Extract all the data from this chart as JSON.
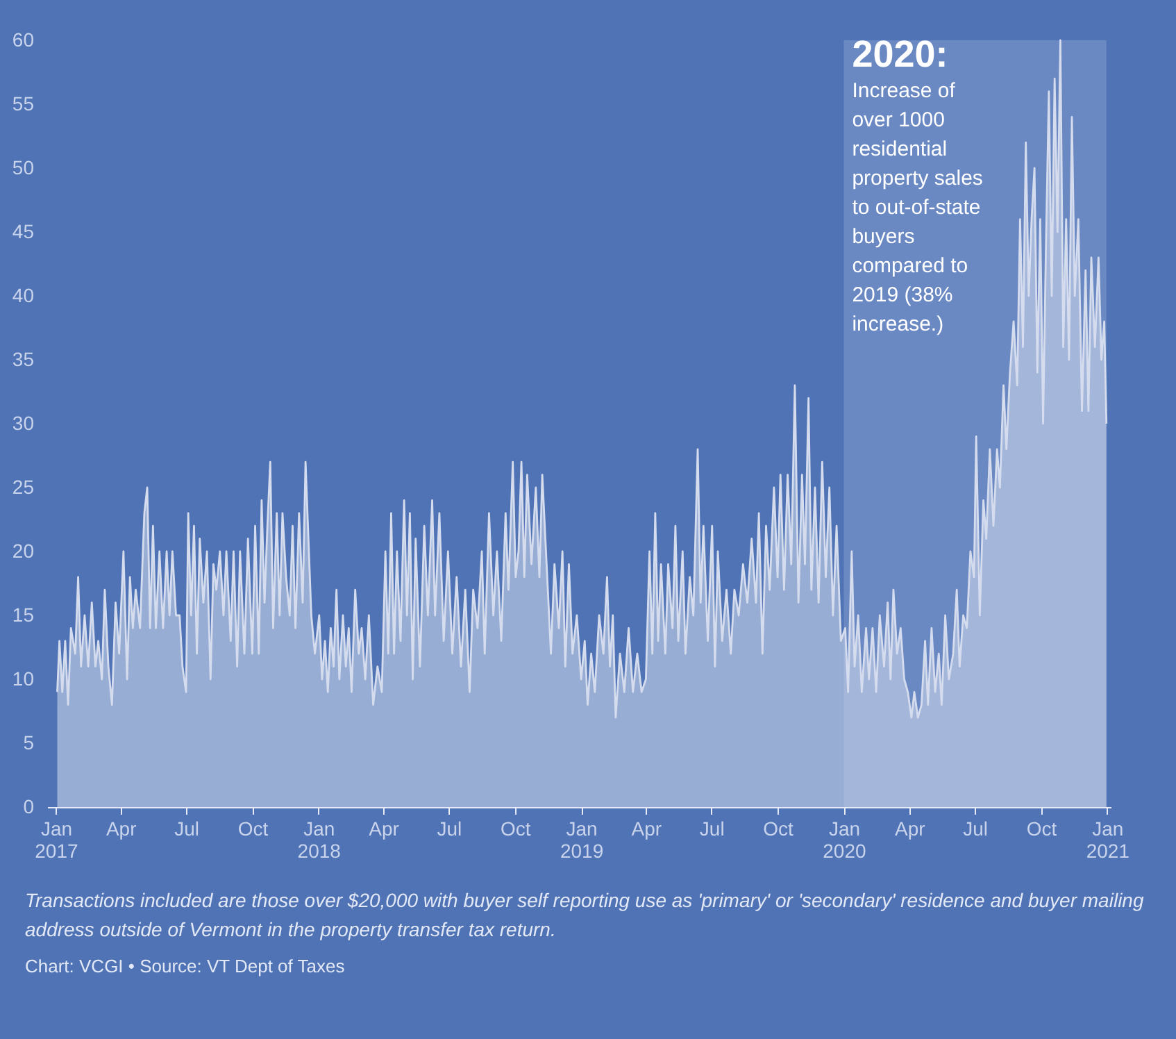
{
  "chart_data": {
    "type": "area",
    "x": [
      "2017-01-03",
      "2017-01-06",
      "2017-01-10",
      "2017-01-14",
      "2017-01-18",
      "2017-01-22",
      "2017-01-28",
      "2017-02-01",
      "2017-02-05",
      "2017-02-10",
      "2017-02-15",
      "2017-02-20",
      "2017-02-25",
      "2017-03-01",
      "2017-03-06",
      "2017-03-10",
      "2017-03-15",
      "2017-03-20",
      "2017-03-25",
      "2017-03-30",
      "2017-04-05",
      "2017-04-10",
      "2017-04-14",
      "2017-04-18",
      "2017-04-22",
      "2017-04-28",
      "2017-05-04",
      "2017-05-08",
      "2017-05-12",
      "2017-05-16",
      "2017-05-20",
      "2017-05-25",
      "2017-05-30",
      "2017-06-04",
      "2017-06-08",
      "2017-06-12",
      "2017-06-17",
      "2017-06-22",
      "2017-06-26",
      "2017-07-01",
      "2017-07-04",
      "2017-07-08",
      "2017-07-12",
      "2017-07-16",
      "2017-07-20",
      "2017-07-25",
      "2017-07-30",
      "2017-08-04",
      "2017-08-08",
      "2017-08-12",
      "2017-08-17",
      "2017-08-22",
      "2017-08-26",
      "2017-09-01",
      "2017-09-05",
      "2017-09-10",
      "2017-09-14",
      "2017-09-20",
      "2017-09-25",
      "2017-10-01",
      "2017-10-05",
      "2017-10-10",
      "2017-10-14",
      "2017-10-18",
      "2017-10-22",
      "2017-10-26",
      "2017-10-30",
      "2017-11-04",
      "2017-11-08",
      "2017-11-12",
      "2017-11-17",
      "2017-11-22",
      "2017-11-26",
      "2017-11-30",
      "2017-12-05",
      "2017-12-10",
      "2017-12-14",
      "2017-12-18",
      "2017-12-22",
      "2017-12-27",
      "2018-01-02",
      "2018-01-06",
      "2018-01-10",
      "2018-01-14",
      "2018-01-18",
      "2018-01-22",
      "2018-01-26",
      "2018-01-30",
      "2018-02-04",
      "2018-02-08",
      "2018-02-12",
      "2018-02-16",
      "2018-02-21",
      "2018-02-26",
      "2018-03-02",
      "2018-03-07",
      "2018-03-12",
      "2018-03-18",
      "2018-03-24",
      "2018-03-30",
      "2018-04-04",
      "2018-04-08",
      "2018-04-12",
      "2018-04-16",
      "2018-04-20",
      "2018-04-25",
      "2018-04-30",
      "2018-05-04",
      "2018-05-08",
      "2018-05-12",
      "2018-05-16",
      "2018-05-22",
      "2018-05-28",
      "2018-06-02",
      "2018-06-08",
      "2018-06-12",
      "2018-06-18",
      "2018-06-24",
      "2018-06-30",
      "2018-07-06",
      "2018-07-12",
      "2018-07-18",
      "2018-07-24",
      "2018-07-30",
      "2018-08-04",
      "2018-08-10",
      "2018-08-16",
      "2018-08-20",
      "2018-08-26",
      "2018-09-01",
      "2018-09-06",
      "2018-09-12",
      "2018-09-18",
      "2018-09-22",
      "2018-09-28",
      "2018-10-02",
      "2018-10-06",
      "2018-10-10",
      "2018-10-14",
      "2018-10-18",
      "2018-10-24",
      "2018-10-30",
      "2018-11-04",
      "2018-11-08",
      "2018-11-14",
      "2018-11-20",
      "2018-11-25",
      "2018-12-01",
      "2018-12-06",
      "2018-12-10",
      "2018-12-15",
      "2018-12-20",
      "2018-12-26",
      "2019-01-01",
      "2019-01-06",
      "2019-01-10",
      "2019-01-15",
      "2019-01-20",
      "2019-01-26",
      "2019-02-01",
      "2019-02-06",
      "2019-02-10",
      "2019-02-14",
      "2019-02-18",
      "2019-02-24",
      "2019-03-02",
      "2019-03-08",
      "2019-03-14",
      "2019-03-20",
      "2019-03-26",
      "2019-04-01",
      "2019-04-06",
      "2019-04-10",
      "2019-04-14",
      "2019-04-18",
      "2019-04-22",
      "2019-04-28",
      "2019-05-02",
      "2019-05-08",
      "2019-05-12",
      "2019-05-16",
      "2019-05-22",
      "2019-05-26",
      "2019-06-01",
      "2019-06-06",
      "2019-06-12",
      "2019-06-16",
      "2019-06-20",
      "2019-06-26",
      "2019-07-02",
      "2019-07-06",
      "2019-07-10",
      "2019-07-16",
      "2019-07-22",
      "2019-07-28",
      "2019-08-02",
      "2019-08-08",
      "2019-08-14",
      "2019-08-20",
      "2019-08-26",
      "2019-09-01",
      "2019-09-05",
      "2019-09-10",
      "2019-09-15",
      "2019-09-20",
      "2019-09-26",
      "2019-10-01",
      "2019-10-05",
      "2019-10-10",
      "2019-10-15",
      "2019-10-20",
      "2019-10-25",
      "2019-10-30",
      "2019-11-04",
      "2019-11-08",
      "2019-11-13",
      "2019-11-17",
      "2019-11-22",
      "2019-11-27",
      "2019-12-02",
      "2019-12-07",
      "2019-12-12",
      "2019-12-17",
      "2019-12-22",
      "2019-12-28",
      "2020-01-03",
      "2020-01-07",
      "2020-01-12",
      "2020-01-16",
      "2020-01-21",
      "2020-01-26",
      "2020-02-01",
      "2020-02-05",
      "2020-02-10",
      "2020-02-15",
      "2020-02-20",
      "2020-02-26",
      "2020-03-02",
      "2020-03-06",
      "2020-03-10",
      "2020-03-15",
      "2020-03-20",
      "2020-03-25",
      "2020-03-30",
      "2020-04-04",
      "2020-04-08",
      "2020-04-13",
      "2020-04-18",
      "2020-04-23",
      "2020-04-27",
      "2020-05-02",
      "2020-05-07",
      "2020-05-12",
      "2020-05-16",
      "2020-05-21",
      "2020-05-26",
      "2020-06-01",
      "2020-06-06",
      "2020-06-10",
      "2020-06-15",
      "2020-06-20",
      "2020-06-25",
      "2020-06-30",
      "2020-07-03",
      "2020-07-08",
      "2020-07-13",
      "2020-07-17",
      "2020-07-22",
      "2020-07-27",
      "2020-08-01",
      "2020-08-05",
      "2020-08-10",
      "2020-08-14",
      "2020-08-19",
      "2020-08-24",
      "2020-08-29",
      "2020-09-02",
      "2020-09-06",
      "2020-09-10",
      "2020-09-14",
      "2020-09-18",
      "2020-09-22",
      "2020-09-26",
      "2020-09-30",
      "2020-10-04",
      "2020-10-08",
      "2020-10-12",
      "2020-10-16",
      "2020-10-20",
      "2020-10-24",
      "2020-10-28",
      "2020-11-01",
      "2020-11-05",
      "2020-11-09",
      "2020-11-13",
      "2020-11-17",
      "2020-11-22",
      "2020-11-27",
      "2020-12-02",
      "2020-12-06",
      "2020-12-10",
      "2020-12-15",
      "2020-12-20",
      "2020-12-24",
      "2020-12-28",
      "2020-12-31"
    ],
    "series": [
      {
        "color": "#d4dcee",
        "values": [
          9,
          13,
          9,
          13,
          8,
          14,
          12,
          18,
          11,
          15,
          11,
          16,
          11,
          13,
          10,
          17,
          11,
          8,
          16,
          12,
          20,
          10,
          18,
          14,
          17,
          14,
          23,
          25,
          14,
          22,
          14,
          20,
          14,
          20,
          15,
          20,
          15,
          15,
          11,
          9,
          23,
          15,
          22,
          12,
          21,
          16,
          20,
          10,
          19,
          17,
          20,
          15,
          20,
          13,
          20,
          11,
          20,
          12,
          21,
          12,
          22,
          12,
          24,
          16,
          22,
          27,
          14,
          23,
          15,
          23,
          18,
          15,
          22,
          14,
          23,
          16,
          27,
          21,
          15,
          12,
          15,
          10,
          13,
          9,
          14,
          11,
          17,
          10,
          15,
          11,
          14,
          9,
          17,
          12,
          14,
          10,
          15,
          8,
          11,
          9,
          20,
          12,
          23,
          12,
          20,
          13,
          24,
          15,
          23,
          10,
          21,
          11,
          22,
          15,
          24,
          15,
          23,
          13,
          20,
          12,
          18,
          11,
          17,
          9,
          17,
          14,
          20,
          12,
          23,
          15,
          20,
          13,
          23,
          17,
          27,
          18,
          20,
          27,
          18,
          26,
          19,
          25,
          18,
          26,
          19,
          12,
          19,
          14,
          20,
          11,
          19,
          12,
          15,
          10,
          13,
          8,
          12,
          9,
          15,
          12,
          18,
          11,
          15,
          7,
          12,
          9,
          14,
          9,
          12,
          9,
          10,
          20,
          12,
          23,
          13,
          19,
          12,
          19,
          14,
          22,
          13,
          20,
          12,
          18,
          15,
          28,
          16,
          22,
          13,
          22,
          11,
          20,
          13,
          17,
          12,
          17,
          15,
          19,
          16,
          21,
          16,
          23,
          12,
          22,
          17,
          25,
          18,
          26,
          17,
          26,
          19,
          33,
          16,
          26,
          19,
          32,
          17,
          25,
          16,
          27,
          18,
          25,
          15,
          22,
          13,
          14,
          9,
          20,
          11,
          15,
          9,
          14,
          10,
          14,
          9,
          15,
          11,
          16,
          10,
          17,
          12,
          14,
          10,
          9,
          7,
          9,
          7,
          8,
          13,
          8,
          14,
          9,
          12,
          8,
          15,
          10,
          12,
          17,
          11,
          15,
          14,
          20,
          18,
          29,
          15,
          24,
          21,
          28,
          22,
          28,
          25,
          33,
          28,
          34,
          38,
          33,
          46,
          36,
          52,
          40,
          46,
          50,
          34,
          46,
          30,
          44,
          56,
          40,
          57,
          45,
          60,
          36,
          46,
          35,
          54,
          40,
          46,
          31,
          42,
          31,
          43,
          36,
          43,
          35,
          38,
          30
        ]
      }
    ],
    "xlim": [
      "2016-12-20",
      "2021-01-06"
    ],
    "xticks": [
      {
        "value": "2017-01-01",
        "label": "Jan 2017"
      },
      {
        "value": "2017-04-01",
        "label": "Apr"
      },
      {
        "value": "2017-07-01",
        "label": "Jul"
      },
      {
        "value": "2017-10-01",
        "label": "Oct"
      },
      {
        "value": "2018-01-01",
        "label": "Jan 2018"
      },
      {
        "value": "2018-04-01",
        "label": "Apr"
      },
      {
        "value": "2018-07-01",
        "label": "Jul"
      },
      {
        "value": "2018-10-01",
        "label": "Oct"
      },
      {
        "value": "2019-01-01",
        "label": "Jan 2019"
      },
      {
        "value": "2019-04-01",
        "label": "Apr"
      },
      {
        "value": "2019-07-01",
        "label": "Jul"
      },
      {
        "value": "2019-10-01",
        "label": "Oct"
      },
      {
        "value": "2020-01-01",
        "label": "Jan 2020"
      },
      {
        "value": "2020-04-01",
        "label": "Apr"
      },
      {
        "value": "2020-07-01",
        "label": "Jul"
      },
      {
        "value": "2020-10-01",
        "label": "Oct"
      },
      {
        "value": "2021-01-01",
        "label": "Jan 2021"
      }
    ],
    "ylim": [
      0,
      60
    ],
    "yticks": [
      0,
      5,
      10,
      15,
      20,
      25,
      30,
      35,
      40,
      45,
      50,
      55,
      60
    ],
    "bands": [
      {
        "axis": "x",
        "from": "2020-01-01",
        "to": "2020-12-31",
        "label": "2020: Increase of over 1000 residential property sales to out-of-state buyers compared to 2019 (38% increase.)",
        "color": "#6a88c2"
      }
    ],
    "annotations": [
      "Transactions included are those over $20,000 with buyer self reporting use as 'primary' or 'secondary' residence and buyer mailing address outside of Vermont in the property transfer tax return.",
      "Chart: VCGI • Source: VT Dept of Taxes"
    ],
    "grid": false
  }
}
